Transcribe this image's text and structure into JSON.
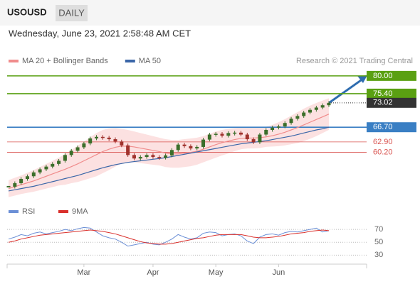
{
  "header": {
    "symbol": "USOUSD",
    "timeframe": "DAILY",
    "timestamp": "Wednesday, June 23, 2021 2:58:48 AM CET"
  },
  "chart_data": {
    "type": "candlestick",
    "credit": "Research © 2021 Trading Central",
    "categories": [
      null,
      null,
      null,
      null,
      null,
      null,
      null,
      null,
      null,
      null,
      null,
      null,
      "Mar",
      null,
      null,
      null,
      null,
      null,
      null,
      null,
      null,
      null,
      null,
      "Apr",
      null,
      null,
      null,
      null,
      null,
      null,
      null,
      null,
      null,
      "May",
      null,
      null,
      null,
      null,
      null,
      null,
      null,
      null,
      null,
      "Jun",
      null,
      null,
      null,
      null,
      null,
      null,
      null,
      null
    ],
    "close": [
      51.3,
      52.2,
      53.3,
      54.0,
      55.0,
      55.8,
      56.5,
      57.2,
      58.0,
      59.5,
      60.6,
      61.5,
      62.5,
      63.8,
      64.2,
      64.0,
      63.6,
      63.0,
      62.0,
      59.5,
      58.6,
      59.0,
      59.5,
      59.0,
      58.8,
      59.4,
      60.8,
      62.2,
      61.8,
      61.2,
      61.6,
      63.5,
      64.8,
      65.0,
      64.5,
      65.2,
      65.3,
      64.8,
      63.6,
      62.8,
      64.8,
      66.0,
      66.6,
      66.9,
      67.8,
      68.9,
      69.6,
      70.5,
      71.2,
      71.8,
      72.4,
      73.02
    ],
    "up_color": "#3b6e2a",
    "down_color": "#a0322d",
    "ylim": [
      50,
      82
    ],
    "series": [
      {
        "name": "MA 20 + Bollinger Bands",
        "color": "#f08c8c",
        "band_color": "#fbd9d9",
        "values": [
          50.8,
          51.3,
          51.8,
          52.3,
          52.8,
          53.4,
          54.0,
          54.6,
          55.2,
          55.8,
          56.5,
          57.2,
          58.0,
          58.8,
          59.6,
          60.4,
          61.0,
          61.5,
          61.8,
          61.8,
          61.6,
          61.3,
          61.0,
          60.7,
          60.4,
          60.0,
          59.8,
          59.8,
          60.0,
          60.2,
          60.5,
          61.0,
          61.6,
          62.2,
          62.7,
          63.1,
          63.5,
          63.8,
          63.9,
          63.9,
          64.0,
          64.2,
          64.5,
          64.9,
          65.4,
          66.0,
          66.6,
          67.3,
          68.0,
          68.7,
          69.4,
          70.1
        ],
        "upper": [
          53.0,
          53.6,
          54.2,
          54.9,
          55.6,
          56.4,
          57.2,
          58.0,
          58.8,
          59.8,
          60.8,
          61.9,
          63.0,
          64.1,
          65.2,
          66.0,
          66.4,
          66.5,
          66.3,
          66.0,
          65.6,
          65.2,
          64.8,
          64.4,
          64.0,
          63.6,
          63.4,
          63.4,
          63.6,
          63.8,
          64.0,
          64.4,
          65.0,
          65.6,
          66.0,
          66.3,
          66.5,
          66.6,
          66.6,
          66.6,
          66.7,
          66.8,
          67.3,
          68.0,
          68.8,
          69.7,
          70.6,
          71.5,
          72.3,
          73.0,
          73.6,
          74.2
        ],
        "lower": [
          48.6,
          49.0,
          49.4,
          49.7,
          50.0,
          50.4,
          50.8,
          51.2,
          51.6,
          51.8,
          52.2,
          52.5,
          53.0,
          53.5,
          54.0,
          54.8,
          55.6,
          56.5,
          57.3,
          57.6,
          57.6,
          57.4,
          57.2,
          57.0,
          56.8,
          56.4,
          56.2,
          56.2,
          56.4,
          56.6,
          57.0,
          57.6,
          58.2,
          58.8,
          59.4,
          59.9,
          60.5,
          61.0,
          61.2,
          61.2,
          61.3,
          61.6,
          61.7,
          61.8,
          62.0,
          62.3,
          62.6,
          63.1,
          63.7,
          64.4,
          65.2,
          66.0
        ]
      },
      {
        "name": "MA 50",
        "color": "#3a66a8",
        "values": [
          50.2,
          50.5,
          50.8,
          51.1,
          51.4,
          51.8,
          52.2,
          52.6,
          53.0,
          53.4,
          53.8,
          54.2,
          54.7,
          55.2,
          55.7,
          56.2,
          56.6,
          57.0,
          57.3,
          57.6,
          57.8,
          58.0,
          58.2,
          58.4,
          58.6,
          58.8,
          59.1,
          59.4,
          59.7,
          60.0,
          60.3,
          60.6,
          60.9,
          61.2,
          61.5,
          61.8,
          62.1,
          62.4,
          62.6,
          62.8,
          63.0,
          63.2,
          63.5,
          63.8,
          64.1,
          64.4,
          64.8,
          65.2,
          65.6,
          66.0,
          66.3,
          66.7
        ]
      }
    ],
    "levels": [
      {
        "value": 80,
        "label": "80.00",
        "color": "#5aa012",
        "style": "box"
      },
      {
        "value": 75.4,
        "label": "75.40",
        "color": "#5aa012",
        "style": "box"
      },
      {
        "value": 73.02,
        "label": "73.02",
        "color": "#333333",
        "style": "current"
      },
      {
        "value": 66.7,
        "label": "66.70",
        "color": "#3a7fc4",
        "style": "box"
      },
      {
        "value": 62.9,
        "label": "62.90",
        "color": "#d9534f",
        "style": "text"
      },
      {
        "value": 60.2,
        "label": "60.20",
        "color": "#d9534f",
        "style": "text"
      }
    ],
    "rsi": {
      "ylim": [
        16,
        90
      ],
      "yticks": [
        70,
        50,
        30
      ],
      "series": [
        {
          "name": "RSI",
          "color": "#6b8fd6",
          "values": [
            55,
            58,
            62,
            60,
            64,
            66,
            63,
            65,
            67,
            70,
            68,
            71,
            73,
            72,
            66,
            60,
            57,
            55,
            50,
            44,
            46,
            48,
            50,
            47,
            46,
            50,
            55,
            62,
            58,
            55,
            57,
            64,
            66,
            65,
            60,
            62,
            63,
            60,
            52,
            48,
            58,
            62,
            63,
            61,
            65,
            67,
            66,
            68,
            70,
            72,
            66,
            68
          ]
        },
        {
          "name": "9MA",
          "color": "#d9302c",
          "values": [
            50,
            52,
            55,
            57,
            59,
            61,
            62,
            63,
            64,
            65,
            66,
            67,
            68,
            69,
            68,
            67,
            65,
            63,
            60,
            57,
            54,
            51,
            49,
            48,
            47,
            47,
            48,
            50,
            52,
            54,
            56,
            57,
            59,
            61,
            62,
            62,
            62,
            62,
            60,
            58,
            57,
            57,
            58,
            59,
            61,
            63,
            64,
            65,
            67,
            68,
            69,
            68
          ]
        }
      ]
    }
  }
}
